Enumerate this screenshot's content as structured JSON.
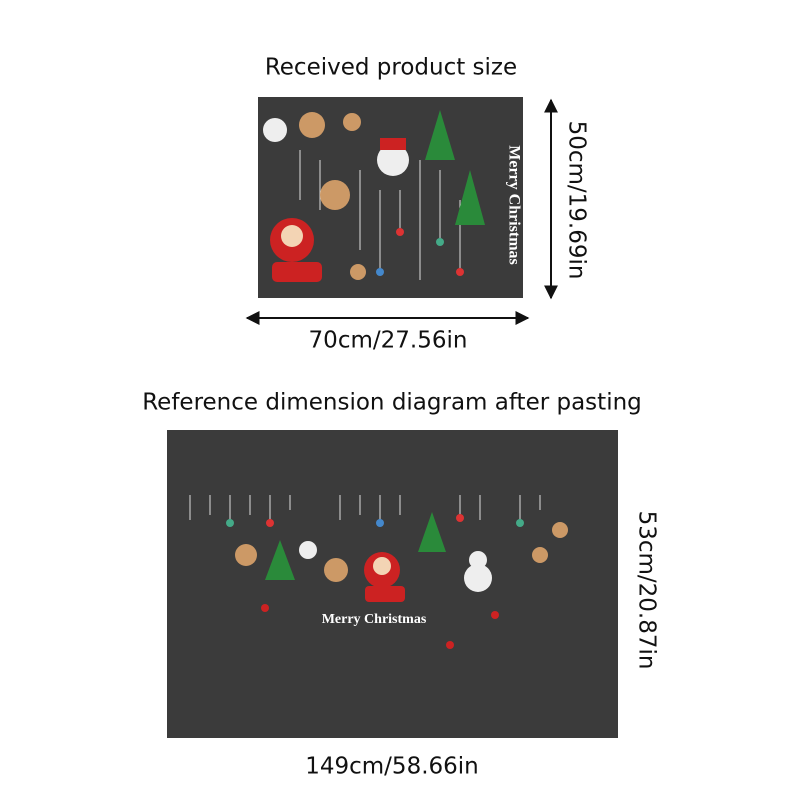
{
  "top": {
    "title": "Received product size",
    "sticker_text": "Merry Christmas",
    "width": "70cm/27.56in",
    "height": "50cm/19.69in"
  },
  "bottom": {
    "title": "Reference dimension diagram after pasting",
    "sticker_text": "Merry Christmas",
    "width": "149cm/58.66in",
    "height": "53cm/20.87in"
  }
}
